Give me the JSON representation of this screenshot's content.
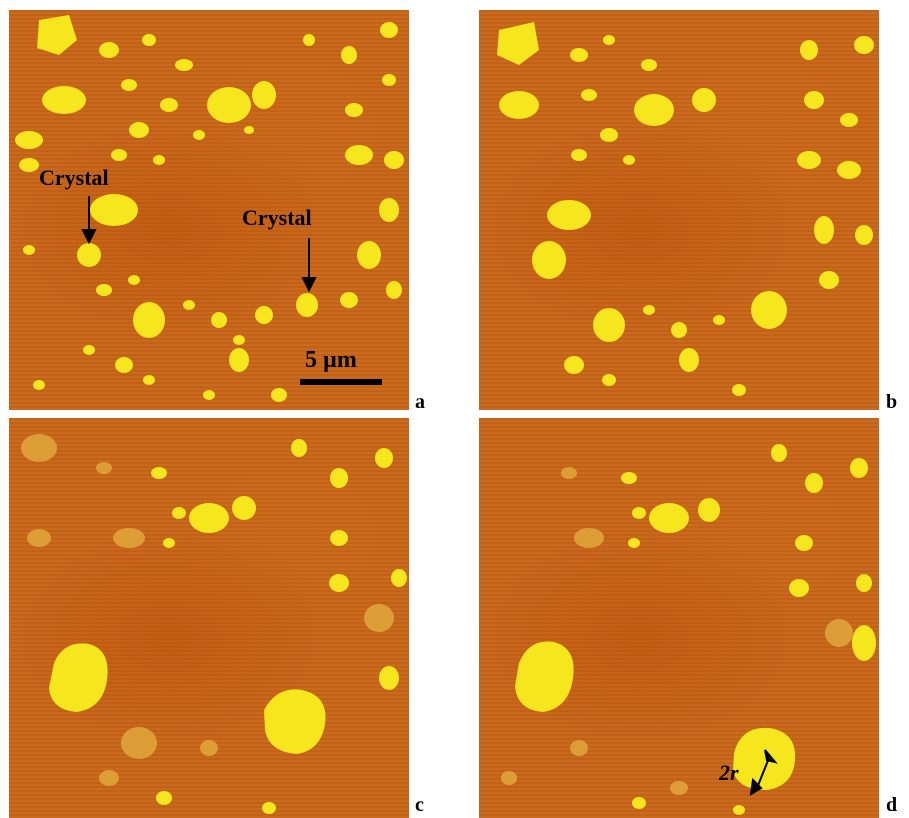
{
  "panels": [
    {
      "id": "a",
      "label": "a"
    },
    {
      "id": "b",
      "label": "b"
    },
    {
      "id": "c",
      "label": "c"
    },
    {
      "id": "d",
      "label": "d"
    }
  ],
  "annotations": {
    "crystal_left": "Crystal",
    "crystal_right": "Crystal",
    "scale_bar": "5 µm",
    "radius": "2r"
  },
  "colors": {
    "background": "#c86518",
    "particle": "#f5e61e",
    "particle_faint": "#e0a43a"
  }
}
